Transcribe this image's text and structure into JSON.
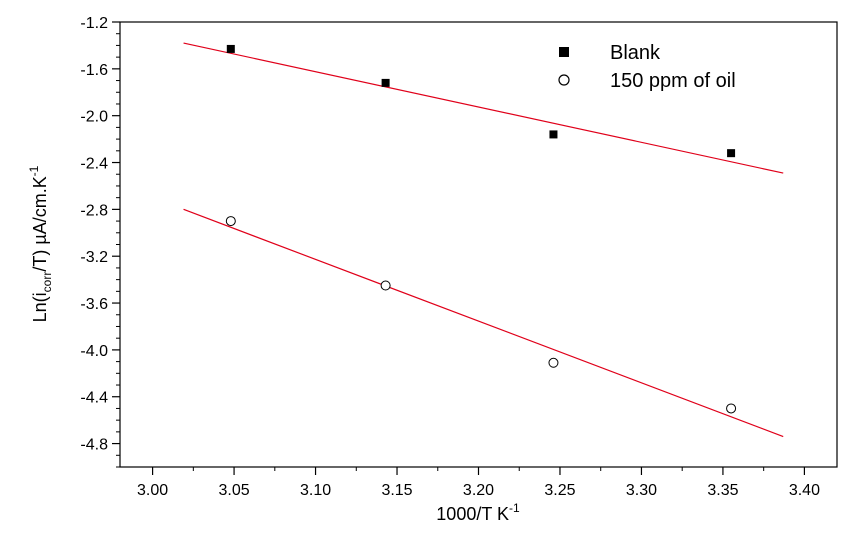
{
  "chart_data": {
    "type": "scatter",
    "title": "",
    "xlabel": "1000/T K",
    "xlabel_sup": "-1",
    "ylabel_parts": {
      "prefix": "Ln(i",
      "sub": "corr",
      "middle": "/T) µA/cm.K",
      "sup": "-1"
    },
    "xlim": [
      2.98,
      3.42
    ],
    "ylim": [
      -5.0,
      -1.2
    ],
    "x_ticks": [
      3.0,
      3.05,
      3.1,
      3.15,
      3.2,
      3.25,
      3.3,
      3.35,
      3.4
    ],
    "x_tick_labels": [
      "3.00",
      "3.05",
      "3.10",
      "3.15",
      "3.20",
      "3.25",
      "3.30",
      "3.35",
      "3.40"
    ],
    "y_ticks": [
      -1.2,
      -1.6,
      -2.0,
      -2.4,
      -2.8,
      -3.2,
      -3.6,
      -4.0,
      -4.4,
      -4.8
    ],
    "y_tick_labels": [
      "-1.2",
      "-1.6",
      "-2.0",
      "-2.4",
      "-2.8",
      "-3.2",
      "-3.6",
      "-4.0",
      "-4.4",
      "-4.8"
    ],
    "grid": false,
    "legend_position": "top-right",
    "series": [
      {
        "name": "Blank",
        "marker": "filled-square",
        "color": "#000000",
        "x": [
          3.048,
          3.143,
          3.246,
          3.355
        ],
        "y": [
          -1.43,
          -1.72,
          -2.16,
          -2.32
        ],
        "fit_line": {
          "x": [
            3.019,
            3.387
          ],
          "y": [
            -1.38,
            -2.49
          ],
          "color": "#e0001a"
        }
      },
      {
        "name": "150 ppm of oil",
        "marker": "open-circle",
        "color": "#000000",
        "x": [
          3.048,
          3.143,
          3.246,
          3.355
        ],
        "y": [
          -2.9,
          -3.45,
          -4.11,
          -4.5
        ],
        "fit_line": {
          "x": [
            3.019,
            3.387
          ],
          "y": [
            -2.8,
            -4.74
          ],
          "color": "#e0001a"
        }
      }
    ]
  }
}
